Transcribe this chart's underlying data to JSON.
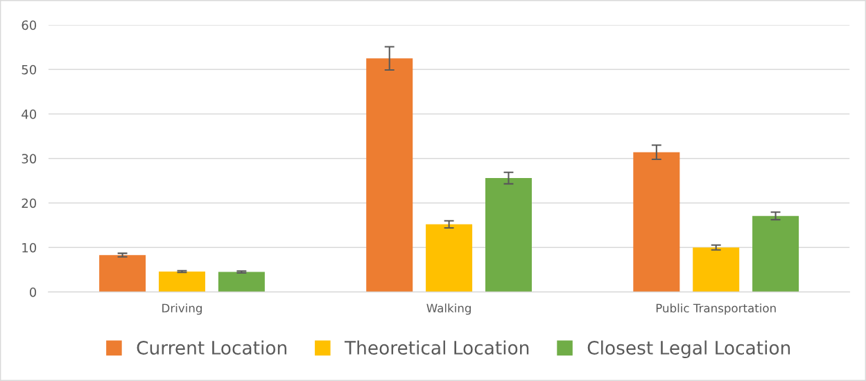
{
  "chart_data": {
    "type": "bar",
    "categories": [
      "Driving",
      "Walking",
      "Public Transportation"
    ],
    "series": [
      {
        "name": "Current Location",
        "color": "#ed7d31",
        "values": [
          8.3,
          52.5,
          31.4
        ],
        "errors": [
          0.4,
          2.6,
          1.6
        ]
      },
      {
        "name": "Theoretical Location",
        "color": "#ffc000",
        "values": [
          4.6,
          15.2,
          10.0
        ],
        "errors": [
          0.2,
          0.8,
          0.55
        ]
      },
      {
        "name": "Closest Legal Location",
        "color": "#70ad47",
        "values": [
          4.5,
          25.6,
          17.1
        ],
        "errors": [
          0.2,
          1.3,
          0.85
        ]
      }
    ],
    "ylim": [
      0,
      60
    ],
    "yticks": [
      0,
      10,
      20,
      30,
      40,
      50,
      60
    ],
    "grid": "y",
    "legend": "bottom"
  }
}
